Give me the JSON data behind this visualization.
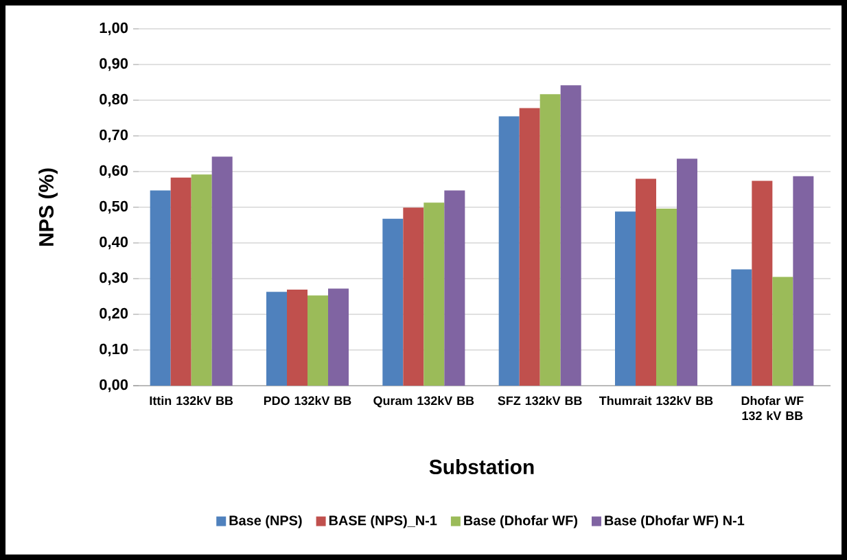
{
  "chart_data": {
    "type": "bar",
    "xlabel": "Substation",
    "ylabel": "NPS (%)",
    "categories": [
      "Ittin 132kV BB",
      "PDO 132kV BB",
      "Quram 132kV BB",
      "SFZ 132kV BB",
      "Thumrait 132kV BB",
      "Dhofar WF 132 kV BB"
    ],
    "series": [
      {
        "name": "Base (NPS)",
        "color": "#4f81bd",
        "values": [
          0.547,
          0.263,
          0.468,
          0.755,
          0.488,
          0.326
        ]
      },
      {
        "name": "BASE (NPS)_N-1",
        "color": "#c0504d",
        "values": [
          0.583,
          0.269,
          0.499,
          0.778,
          0.58,
          0.574
        ]
      },
      {
        "name": "Base (Dhofar WF)",
        "color": "#9bbb59",
        "values": [
          0.592,
          0.253,
          0.513,
          0.817,
          0.496,
          0.305
        ]
      },
      {
        "name": "Base (Dhofar WF) N-1",
        "color": "#8064a2",
        "values": [
          0.642,
          0.272,
          0.547,
          0.842,
          0.636,
          0.587
        ]
      }
    ],
    "ylim": [
      0,
      1
    ],
    "yticks": [
      {
        "value": 0,
        "label": "0,00"
      },
      {
        "value": 0.1,
        "label": "0,10"
      },
      {
        "value": 0.2,
        "label": "0,20"
      },
      {
        "value": 0.3,
        "label": "0,30"
      },
      {
        "value": 0.4,
        "label": "0,40"
      },
      {
        "value": 0.5,
        "label": "0,50"
      },
      {
        "value": 0.6,
        "label": "0,60"
      },
      {
        "value": 0.7,
        "label": "0,70"
      },
      {
        "value": 0.8,
        "label": "0,80"
      },
      {
        "value": 0.9,
        "label": "0,90"
      },
      {
        "value": 1.0,
        "label": "1,00"
      }
    ],
    "grid": "y",
    "legend": "bottom"
  }
}
